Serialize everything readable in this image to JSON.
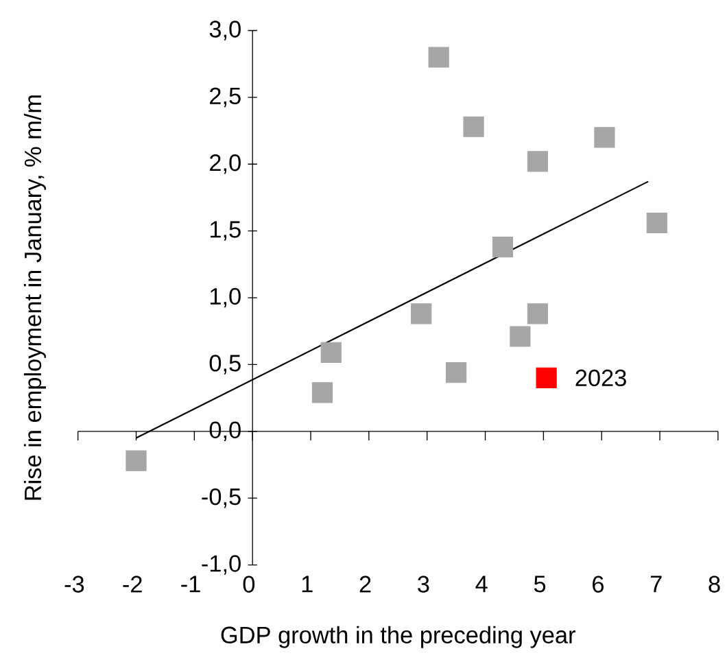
{
  "chart_data": {
    "type": "scatter",
    "xlabel": "GDP growth in the preceding year",
    "ylabel": "Rise in employment in January, % m/m",
    "xlim": [
      -3,
      8
    ],
    "ylim": [
      -1,
      3
    ],
    "xticks": [
      -3,
      -2,
      -1,
      0,
      1,
      2,
      3,
      4,
      5,
      6,
      7,
      8
    ],
    "yticks": [
      {
        "value": -1,
        "label": "-1,0"
      },
      {
        "value": -0.5,
        "label": "-0,5"
      },
      {
        "value": 0,
        "label": "0,0"
      },
      {
        "value": 0.5,
        "label": "0,5"
      },
      {
        "value": 1,
        "label": "1,0"
      },
      {
        "value": 1.5,
        "label": "1,5"
      },
      {
        "value": 2,
        "label": "2,0"
      },
      {
        "value": 2.5,
        "label": "2,5"
      },
      {
        "value": 3,
        "label": "3,0"
      }
    ],
    "marker": "square",
    "series": [
      {
        "color": "#a6a6a6",
        "x": [
          3.2,
          3.8,
          6.05,
          4.9,
          6.95,
          4.3,
          2.9,
          4.9,
          4.6,
          1.35,
          3.5,
          1.2,
          -2.0
        ],
        "values": [
          2.8,
          2.28,
          2.2,
          2.02,
          1.56,
          1.38,
          0.88,
          0.88,
          0.71,
          0.59,
          0.44,
          0.29,
          -0.22
        ]
      },
      {
        "color": "#ff0000",
        "x": [
          5.05
        ],
        "values": [
          0.4
        ]
      },
      {
        "type": "line",
        "color": "#000000",
        "marker": "none",
        "x": [
          -2.0,
          6.8
        ],
        "values": [
          -0.05,
          1.87
        ]
      }
    ],
    "annotations": [
      {
        "text": "2023",
        "x": 5.05,
        "y": 0.4
      }
    ]
  }
}
